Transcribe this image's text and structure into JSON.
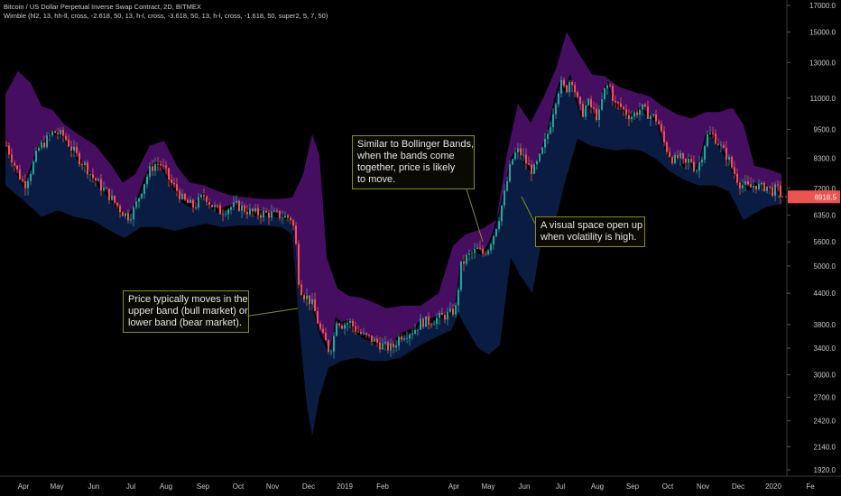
{
  "header": {
    "line1": "Bitcoin / US Dollar Perpetual Inverse Swap Contract, 2D, BITMEX",
    "line2": "Wimble (hl2, 13, hh-ll, cross, -2.618, 50, 13, h-l, cross, -3.618, 50, 13, h-l, cross, -1.618, 50, super2, 5, 7, 50)"
  },
  "annotations": [
    {
      "lines": [
        "Similar to Bollinger Bands,",
        "when the bands come",
        "together, price is likely",
        "to move."
      ]
    },
    {
      "lines": [
        "A visual space open up",
        "when volatility is high."
      ]
    },
    {
      "lines": [
        "Price typically moves in the",
        "upper band (bull market) or",
        "lower band (bear market)."
      ]
    }
  ],
  "chart_data": {
    "type": "candlestick",
    "price_axis": {
      "scale": "log",
      "ticks": [
        "17000.0",
        "15000.0",
        "13000.0",
        "11000.0",
        "9500.0",
        "8300.0",
        "7200.0",
        "6350.0",
        "5600.0",
        "5000.0",
        "4400.0",
        "3800.0",
        "3400.0",
        "3000.0",
        "2700.0",
        "2420.0",
        "2140.0",
        "1920.0"
      ],
      "tick_values": [
        17000,
        15000,
        13000,
        11000,
        9500,
        8300,
        7200,
        6350,
        5600,
        5000,
        4400,
        3800,
        3400,
        3000,
        2700,
        2420,
        2140,
        1920
      ],
      "last_price": "6918.5"
    },
    "time_axis": {
      "ticks": [
        "Apr",
        "May",
        "Jun",
        "Jul",
        "Aug",
        "Sep",
        "Oct",
        "Nov",
        "Dec",
        "2019",
        "Feb",
        "Apr",
        "May",
        "Jun",
        "Jul",
        "Aug",
        "Sep",
        "Oct",
        "Nov",
        "Dec",
        "2020",
        "Fe"
      ]
    },
    "colors": {
      "up": "#26a69a",
      "down": "#ef5350",
      "upper_band": "#4a0f66",
      "lower_band": "#0b1e45",
      "annotation_border": "#8a8a20",
      "price_tag": "#ef5350"
    },
    "close_path": [
      [
        0,
        8800
      ],
      [
        6,
        8300
      ],
      [
        12,
        7800
      ],
      [
        20,
        7300
      ],
      [
        28,
        7900
      ],
      [
        36,
        8700
      ],
      [
        44,
        9000
      ],
      [
        52,
        9400
      ],
      [
        58,
        9300
      ],
      [
        64,
        9200
      ],
      [
        72,
        8700
      ],
      [
        80,
        8300
      ],
      [
        88,
        8000
      ],
      [
        95,
        7600
      ],
      [
        100,
        7450
      ],
      [
        105,
        7250
      ],
      [
        112,
        7050
      ],
      [
        118,
        6800
      ],
      [
        124,
        6600
      ],
      [
        130,
        6400
      ],
      [
        136,
        6300
      ],
      [
        142,
        6550
      ],
      [
        148,
        7000
      ],
      [
        154,
        7500
      ],
      [
        160,
        7900
      ],
      [
        166,
        8100
      ],
      [
        171,
        8050
      ],
      [
        176,
        7800
      ],
      [
        182,
        7400
      ],
      [
        190,
        7100
      ],
      [
        196,
        6800
      ],
      [
        202,
        6700
      ],
      [
        208,
        6600
      ],
      [
        214,
        6800
      ],
      [
        220,
        7000
      ],
      [
        226,
        6700
      ],
      [
        232,
        6550
      ],
      [
        238,
        6450
      ],
      [
        244,
        6550
      ],
      [
        250,
        6600
      ],
      [
        256,
        6650
      ],
      [
        262,
        6550
      ],
      [
        270,
        6450
      ],
      [
        278,
        6400
      ],
      [
        286,
        6400
      ],
      [
        294,
        6380
      ],
      [
        302,
        6350
      ],
      [
        310,
        6300
      ],
      [
        316,
        6250
      ],
      [
        320,
        5800
      ],
      [
        324,
        4700
      ],
      [
        328,
        4400
      ],
      [
        334,
        4300
      ],
      [
        340,
        4150
      ],
      [
        346,
        3800
      ],
      [
        350,
        3600
      ],
      [
        354,
        3500
      ],
      [
        358,
        3350
      ],
      [
        362,
        3500
      ],
      [
        366,
        3900
      ],
      [
        372,
        3800
      ],
      [
        380,
        3850
      ],
      [
        388,
        3700
      ],
      [
        396,
        3600
      ],
      [
        404,
        3550
      ],
      [
        412,
        3480
      ],
      [
        420,
        3420
      ],
      [
        428,
        3400
      ],
      [
        436,
        3600
      ],
      [
        444,
        3650
      ],
      [
        452,
        3700
      ],
      [
        460,
        3850
      ],
      [
        468,
        3850
      ],
      [
        476,
        3900
      ],
      [
        484,
        3950
      ],
      [
        492,
        4000
      ],
      [
        498,
        4100
      ],
      [
        504,
        5000
      ],
      [
        510,
        5200
      ],
      [
        516,
        5300
      ],
      [
        522,
        5400
      ],
      [
        528,
        5300
      ],
      [
        534,
        5450
      ],
      [
        540,
        5800
      ],
      [
        546,
        6300
      ],
      [
        552,
        7000
      ],
      [
        556,
        7600
      ],
      [
        560,
        8200
      ],
      [
        566,
        8600
      ],
      [
        572,
        8400
      ],
      [
        578,
        8000
      ],
      [
        584,
        7800
      ],
      [
        590,
        8200
      ],
      [
        596,
        8800
      ],
      [
        602,
        9600
      ],
      [
        608,
        10800
      ],
      [
        614,
        11800
      ],
      [
        620,
        11400
      ],
      [
        626,
        12200
      ],
      [
        632,
        11000
      ],
      [
        638,
        10200
      ],
      [
        644,
        10800
      ],
      [
        650,
        10400
      ],
      [
        656,
        10000
      ],
      [
        662,
        11300
      ],
      [
        668,
        11800
      ],
      [
        674,
        10700
      ],
      [
        680,
        10600
      ],
      [
        686,
        10300
      ],
      [
        692,
        10100
      ],
      [
        698,
        10300
      ],
      [
        704,
        10500
      ],
      [
        710,
        10250
      ],
      [
        716,
        10100
      ],
      [
        722,
        9900
      ],
      [
        728,
        9000
      ],
      [
        734,
        8500
      ],
      [
        740,
        8200
      ],
      [
        746,
        8350
      ],
      [
        752,
        8000
      ],
      [
        758,
        8300
      ],
      [
        764,
        7800
      ],
      [
        770,
        8300
      ],
      [
        776,
        9200
      ],
      [
        782,
        9300
      ],
      [
        788,
        9000
      ],
      [
        794,
        8600
      ],
      [
        800,
        8300
      ],
      [
        806,
        7800
      ],
      [
        812,
        7400
      ],
      [
        818,
        7300
      ],
      [
        824,
        7200
      ],
      [
        830,
        7350
      ],
      [
        836,
        7200
      ],
      [
        842,
        7300
      ],
      [
        848,
        7100
      ],
      [
        854,
        7200
      ],
      [
        860,
        6918.5
      ]
    ],
    "upper_band": [
      [
        0,
        11200
      ],
      [
        14,
        12500
      ],
      [
        28,
        11800
      ],
      [
        40,
        10600
      ],
      [
        52,
        10400
      ],
      [
        66,
        9700
      ],
      [
        80,
        9300
      ],
      [
        100,
        8800
      ],
      [
        118,
        8000
      ],
      [
        130,
        7400
      ],
      [
        144,
        7700
      ],
      [
        160,
        8800
      ],
      [
        176,
        9000
      ],
      [
        190,
        8000
      ],
      [
        204,
        7400
      ],
      [
        220,
        7300
      ],
      [
        236,
        7100
      ],
      [
        252,
        6950
      ],
      [
        268,
        6900
      ],
      [
        286,
        6850
      ],
      [
        304,
        6850
      ],
      [
        318,
        6900
      ],
      [
        330,
        7700
      ],
      [
        340,
        9300
      ],
      [
        348,
        8400
      ],
      [
        356,
        5200
      ],
      [
        368,
        4500
      ],
      [
        380,
        4350
      ],
      [
        396,
        4300
      ],
      [
        410,
        4200
      ],
      [
        422,
        4100
      ],
      [
        440,
        4150
      ],
      [
        460,
        4150
      ],
      [
        480,
        4400
      ],
      [
        496,
        5500
      ],
      [
        510,
        5800
      ],
      [
        528,
        5950
      ],
      [
        544,
        6200
      ],
      [
        556,
        8500
      ],
      [
        568,
        10700
      ],
      [
        582,
        9800
      ],
      [
        596,
        11000
      ],
      [
        610,
        12600
      ],
      [
        622,
        15000
      ],
      [
        636,
        13500
      ],
      [
        650,
        12300
      ],
      [
        664,
        12200
      ],
      [
        680,
        11600
      ],
      [
        698,
        11300
      ],
      [
        714,
        11100
      ],
      [
        728,
        10600
      ],
      [
        744,
        10200
      ],
      [
        760,
        10000
      ],
      [
        776,
        10300
      ],
      [
        790,
        10300
      ],
      [
        806,
        10500
      ],
      [
        818,
        9700
      ],
      [
        830,
        8000
      ],
      [
        844,
        7900
      ],
      [
        860,
        7700
      ]
    ],
    "lower_band": [
      [
        0,
        7300
      ],
      [
        20,
        6800
      ],
      [
        40,
        6300
      ],
      [
        58,
        6500
      ],
      [
        76,
        6300
      ],
      [
        96,
        6200
      ],
      [
        116,
        5900
      ],
      [
        132,
        5700
      ],
      [
        150,
        6000
      ],
      [
        170,
        6000
      ],
      [
        188,
        5900
      ],
      [
        204,
        6000
      ],
      [
        222,
        6100
      ],
      [
        240,
        6000
      ],
      [
        260,
        6050
      ],
      [
        284,
        6050
      ],
      [
        306,
        6000
      ],
      [
        318,
        5800
      ],
      [
        326,
        3700
      ],
      [
        334,
        2600
      ],
      [
        340,
        2250
      ],
      [
        348,
        2700
      ],
      [
        358,
        3100
      ],
      [
        372,
        3200
      ],
      [
        390,
        3250
      ],
      [
        406,
        3200
      ],
      [
        420,
        3200
      ],
      [
        438,
        3250
      ],
      [
        460,
        3450
      ],
      [
        480,
        3600
      ],
      [
        494,
        3700
      ],
      [
        502,
        4000
      ],
      [
        512,
        3700
      ],
      [
        524,
        3400
      ],
      [
        536,
        3300
      ],
      [
        548,
        3450
      ],
      [
        560,
        5200
      ],
      [
        570,
        4800
      ],
      [
        584,
        4400
      ],
      [
        594,
        5600
      ],
      [
        608,
        6000
      ],
      [
        620,
        7400
      ],
      [
        634,
        9100
      ],
      [
        648,
        8800
      ],
      [
        662,
        8700
      ],
      [
        676,
        8600
      ],
      [
        690,
        8650
      ],
      [
        704,
        8600
      ],
      [
        720,
        8300
      ],
      [
        736,
        7800
      ],
      [
        752,
        7500
      ],
      [
        768,
        7300
      ],
      [
        786,
        7300
      ],
      [
        802,
        7100
      ],
      [
        818,
        6200
      ],
      [
        830,
        6400
      ],
      [
        844,
        6600
      ],
      [
        860,
        6700
      ]
    ]
  }
}
